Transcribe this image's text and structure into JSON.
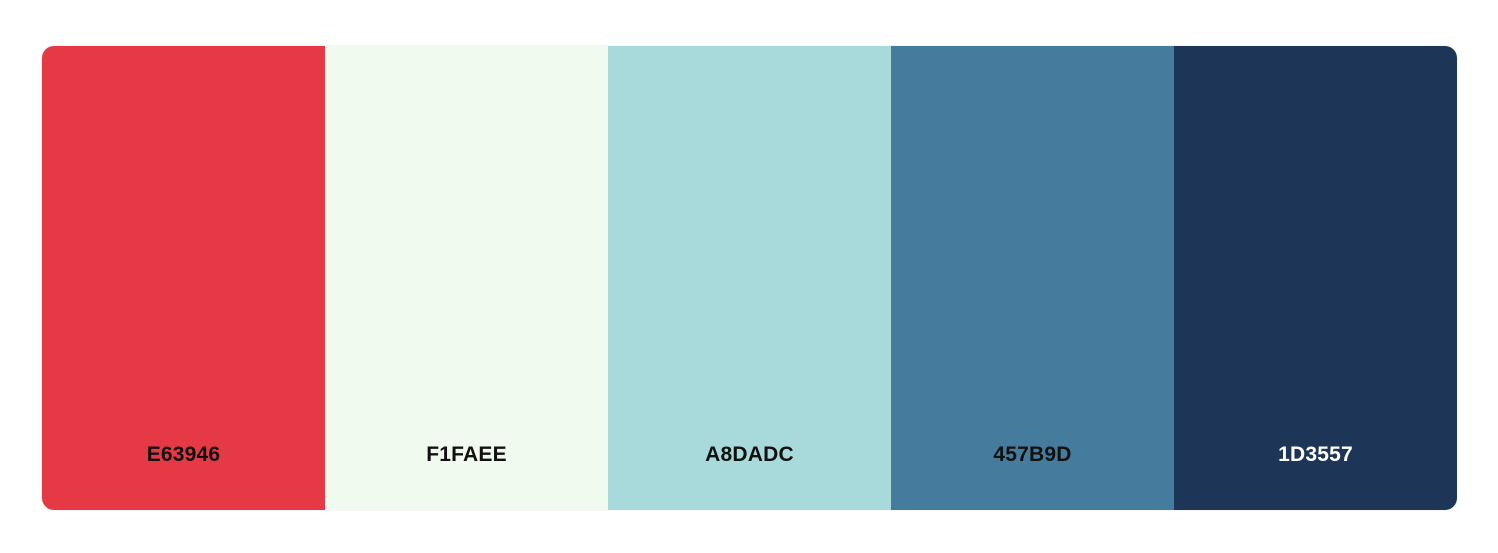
{
  "palette": {
    "colors": [
      {
        "hex": "E63946",
        "color": "#E63946",
        "text_color": "#111111"
      },
      {
        "hex": "F1FAEE",
        "color": "#F1FAEE",
        "text_color": "#111111"
      },
      {
        "hex": "A8DADC",
        "color": "#A8DADC",
        "text_color": "#111111"
      },
      {
        "hex": "457B9D",
        "color": "#457B9D",
        "text_color": "#111111"
      },
      {
        "hex": "1D3557",
        "color": "#1D3557",
        "text_color": "#FFFFFF"
      }
    ]
  }
}
